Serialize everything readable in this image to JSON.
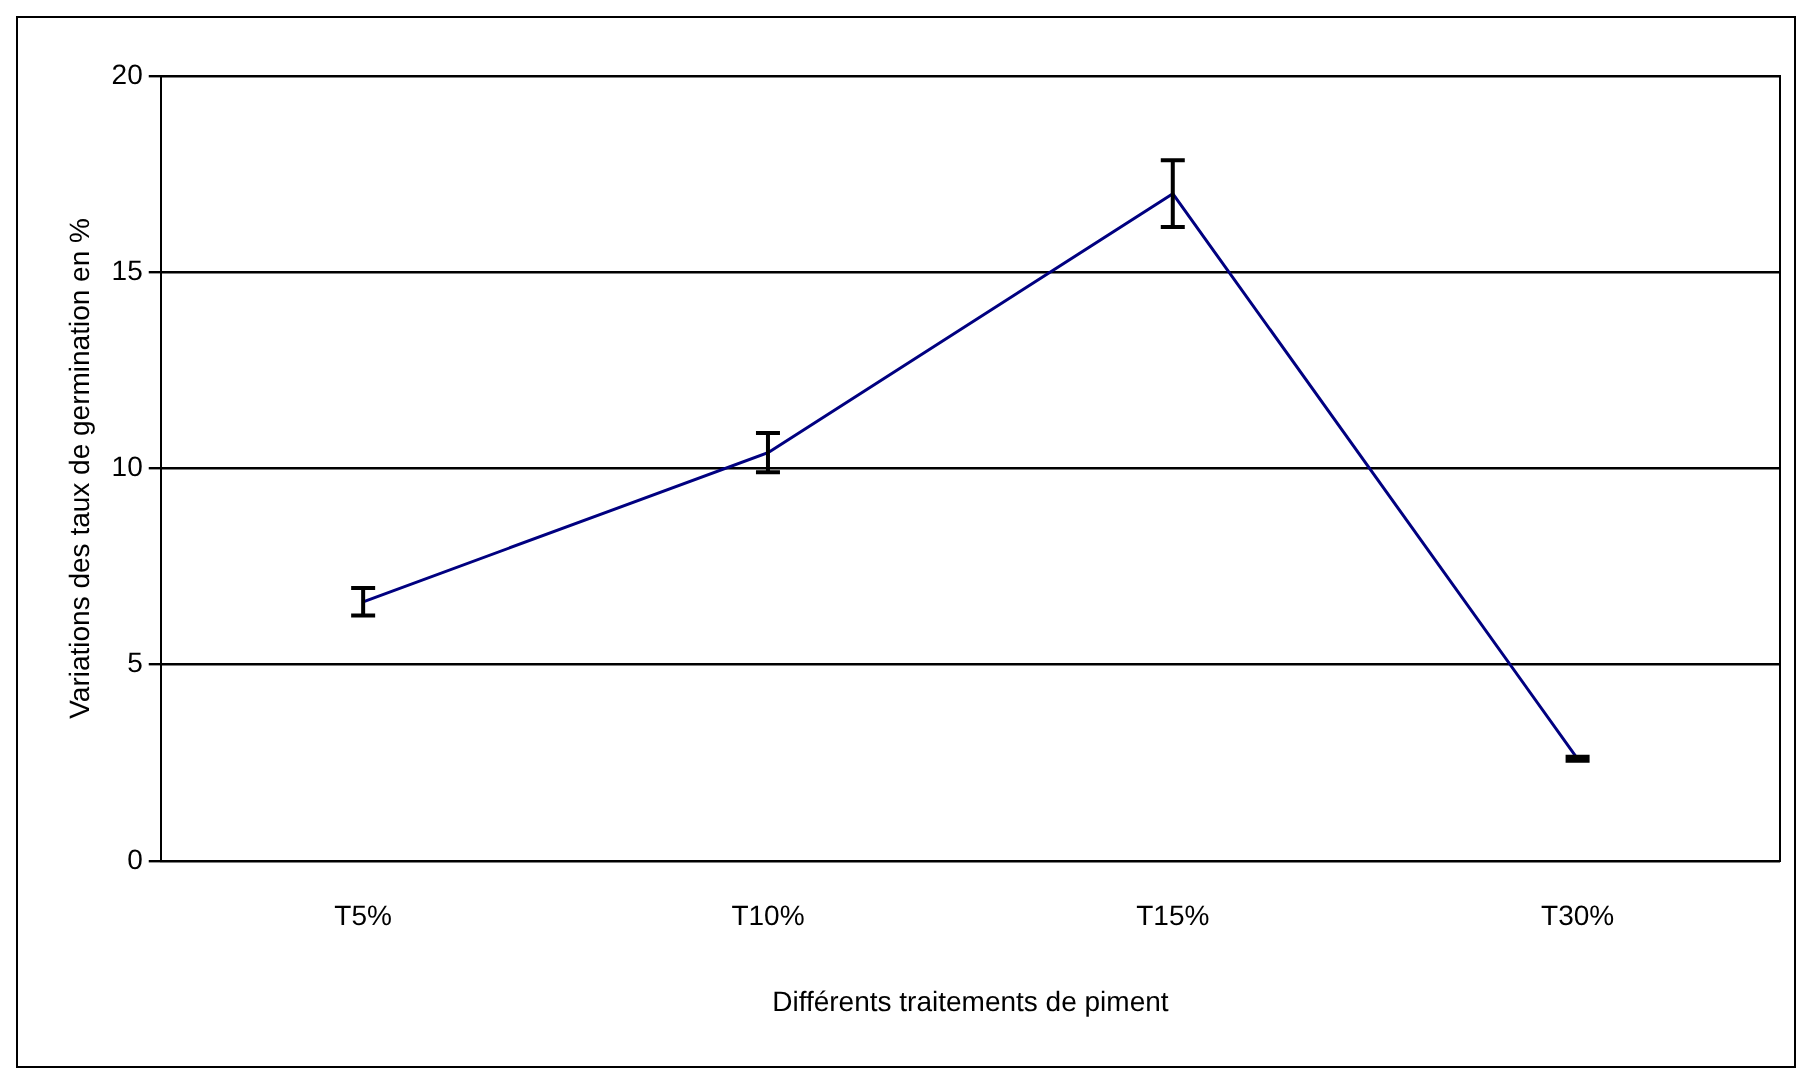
{
  "chart_data": {
    "type": "line",
    "xlabel": "Différents traitements de piment",
    "ylabel": "Variations des taux de germination en %",
    "categories": [
      "T5%",
      "T10%",
      "T15%",
      "T30%"
    ],
    "series": [
      {
        "color": "#000080",
        "values": [
          6.6,
          10.4,
          17.0,
          2.6
        ],
        "errors": [
          0.35,
          0.5,
          0.85,
          0.05
        ]
      }
    ],
    "ylim": [
      0,
      20
    ],
    "yticks": [
      0,
      5,
      10,
      15,
      20
    ],
    "grid": "y",
    "legend": false,
    "line_style": "solid"
  }
}
